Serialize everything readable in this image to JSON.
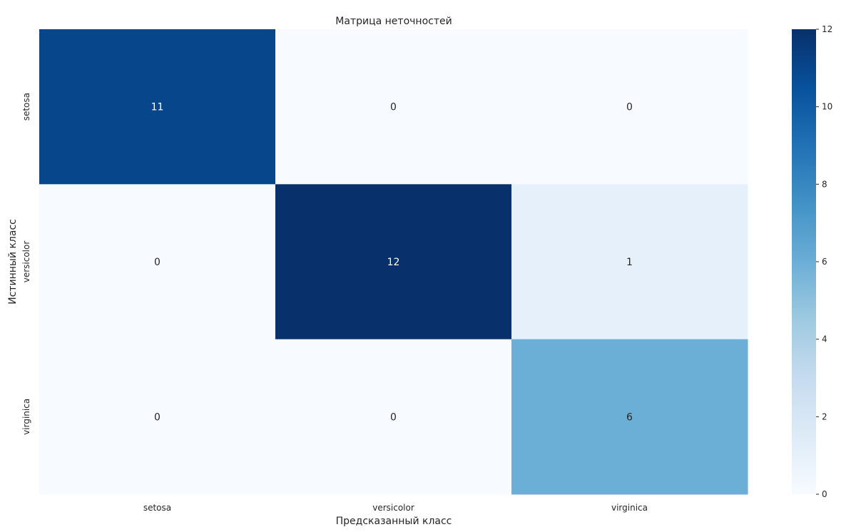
{
  "chart_data": {
    "type": "heatmap",
    "title": "Матрица неточностей",
    "xlabel": "Предсказанный класс",
    "ylabel": "Истинный класс",
    "x_categories": [
      "setosa",
      "versicolor",
      "virginica"
    ],
    "y_categories": [
      "setosa",
      "versicolor",
      "virginica"
    ],
    "values": [
      [
        11,
        0,
        0
      ],
      [
        0,
        12,
        1
      ],
      [
        0,
        0,
        6
      ]
    ],
    "cell_labels": [
      [
        "11",
        "0",
        "0"
      ],
      [
        "0",
        "12",
        "1"
      ],
      [
        "0",
        "0",
        "6"
      ]
    ],
    "colormap": "Blues",
    "color_range": [
      0,
      12
    ],
    "colorbar_ticks": [
      0,
      2,
      4,
      6,
      8,
      10,
      12
    ],
    "colorbar_tick_labels": [
      "0",
      "2",
      "4",
      "6",
      "8",
      "10",
      "12"
    ]
  }
}
